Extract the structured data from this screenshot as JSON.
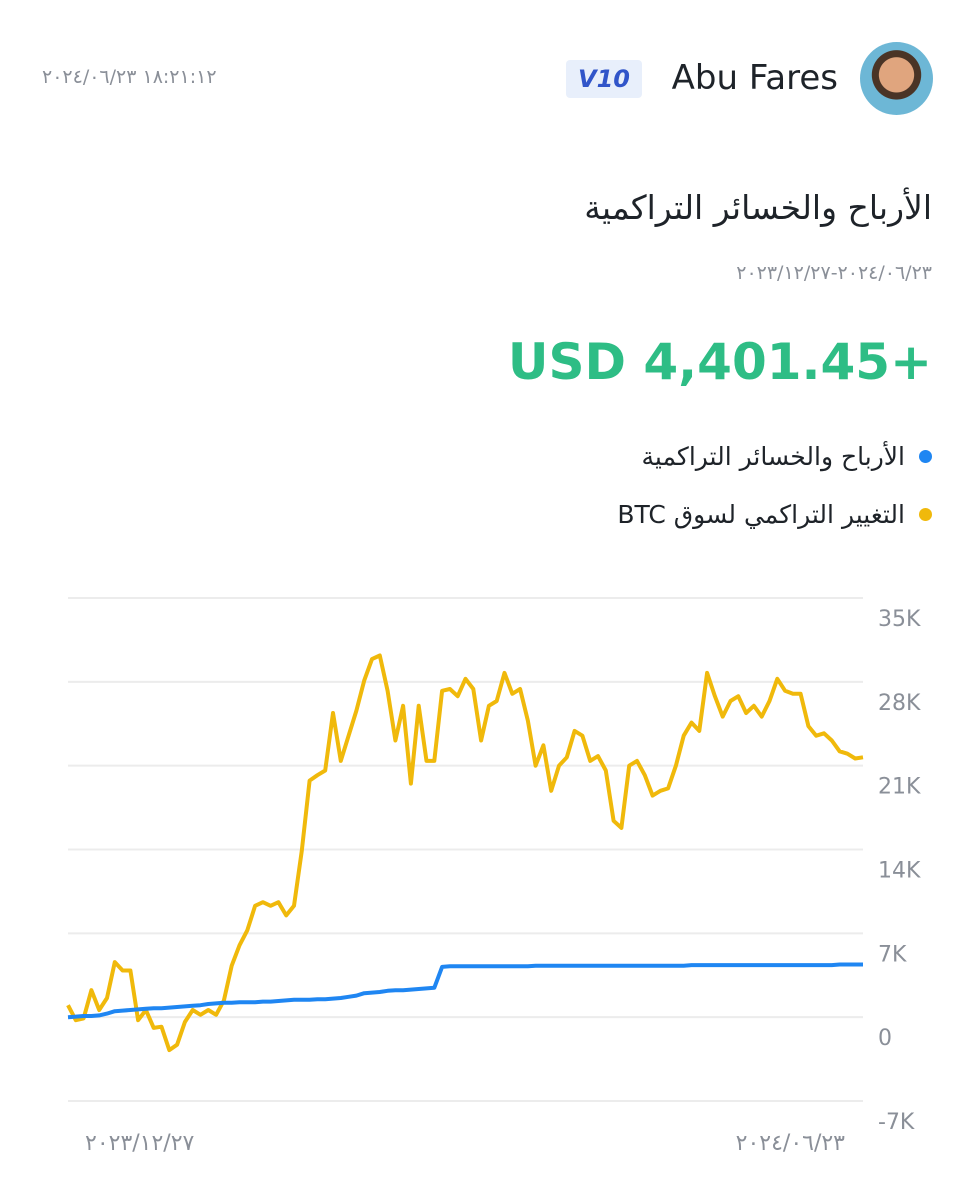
{
  "header": {
    "timestamp": "١٨:٢١:١٢ ٢٠٢٤/٠٦/٢٣",
    "badge": "V10",
    "username": "Abu Fares"
  },
  "summary": {
    "title": "الأرباح والخسائر التراكمية",
    "date_range": "٢٠٢٤/٠٦/٢٣-٢٠٢٣/١٢/٢٧",
    "total": "USD 4,401.45+"
  },
  "chart_data": {
    "type": "line",
    "categories": [
      "٢٠٢٣/١٢/٢٧",
      null,
      null,
      null,
      null,
      null,
      null,
      null,
      null,
      null,
      null,
      null,
      null,
      null,
      null,
      null,
      null,
      null,
      null,
      null,
      null,
      null,
      null,
      null,
      null,
      null,
      null,
      null,
      null,
      null,
      null,
      null,
      null,
      null,
      null,
      null,
      null,
      null,
      null,
      null,
      null,
      null,
      null,
      null,
      null,
      null,
      null,
      null,
      null,
      null,
      null,
      null,
      null,
      null,
      null,
      null,
      null,
      null,
      null,
      null,
      null,
      null,
      null,
      null,
      null,
      null,
      null,
      null,
      null,
      null,
      null,
      null,
      null,
      null,
      null,
      null,
      null,
      null,
      null,
      null,
      null,
      null,
      null,
      null,
      null,
      null,
      null,
      null,
      null,
      null,
      null,
      null,
      null,
      null,
      null,
      null,
      null,
      null,
      null,
      null,
      null,
      null,
      "٢٠٢٤/٠٦/٢٣"
    ],
    "series": [
      {
        "name": "الأرباح والخسائر التراكمية",
        "color": "#1f86f2",
        "values": [
          0,
          50,
          100,
          100,
          150,
          300,
          500,
          550,
          600,
          650,
          700,
          750,
          750,
          800,
          850,
          900,
          950,
          1000,
          1100,
          1150,
          1200,
          1200,
          1250,
          1250,
          1250,
          1300,
          1300,
          1350,
          1400,
          1450,
          1450,
          1450,
          1500,
          1500,
          1550,
          1600,
          1700,
          1800,
          2000,
          2050,
          2100,
          2200,
          2250,
          2250,
          2300,
          2350,
          2400,
          2450,
          4200,
          4250,
          4250,
          4250,
          4250,
          4250,
          4250,
          4250,
          4250,
          4250,
          4250,
          4250,
          4300,
          4300,
          4300,
          4300,
          4300,
          4300,
          4300,
          4300,
          4300,
          4300,
          4300,
          4300,
          4300,
          4300,
          4300,
          4300,
          4300,
          4300,
          4300,
          4300,
          4350,
          4350,
          4350,
          4350,
          4350,
          4350,
          4350,
          4350,
          4350,
          4350,
          4350,
          4350,
          4350,
          4350,
          4350,
          4350,
          4350,
          4350,
          4350,
          4400,
          4400,
          4400,
          4400
        ]
      },
      {
        "name": "التغيير التراكمي لسوق BTC",
        "color": "#f0b90b",
        "values": [
          1000,
          -250,
          -100,
          2250,
          600,
          1600,
          4600,
          3900,
          3900,
          -250,
          600,
          -900,
          -800,
          -2750,
          -2300,
          -400,
          600,
          200,
          600,
          200,
          1400,
          4300,
          6000,
          7250,
          9300,
          9600,
          9300,
          9600,
          8500,
          9300,
          13900,
          19750,
          20200,
          20600,
          25400,
          21400,
          23500,
          25600,
          28100,
          29900,
          30200,
          27250,
          23100,
          26000,
          19500,
          26000,
          21400,
          21400,
          27250,
          27400,
          26800,
          28250,
          27400,
          23100,
          26000,
          26400,
          28750,
          27000,
          27400,
          24750,
          21000,
          22700,
          18900,
          21000,
          21700,
          23900,
          23500,
          21400,
          21800,
          20600,
          16400,
          15800,
          21000,
          21400,
          20200,
          18500,
          18900,
          19100,
          21000,
          23500,
          24600,
          23900,
          28750,
          26800,
          25100,
          26400,
          26800,
          25400,
          26000,
          25100,
          26400,
          28250,
          27250,
          27000,
          27000,
          24300,
          23500,
          23700,
          23100,
          22200,
          22000,
          21600,
          21700
        ]
      }
    ],
    "ylim": [
      -7000,
      35000
    ],
    "yticks": [
      {
        "value": -7000,
        "label": "-7K"
      },
      0,
      {
        "value": 7000,
        "label": "7K"
      },
      {
        "value": 14000,
        "label": "14K"
      },
      {
        "value": 21000,
        "label": "21K"
      },
      {
        "value": 28000,
        "label": "28K"
      },
      {
        "value": 35000,
        "label": "35K"
      }
    ],
    "grid": true
  }
}
